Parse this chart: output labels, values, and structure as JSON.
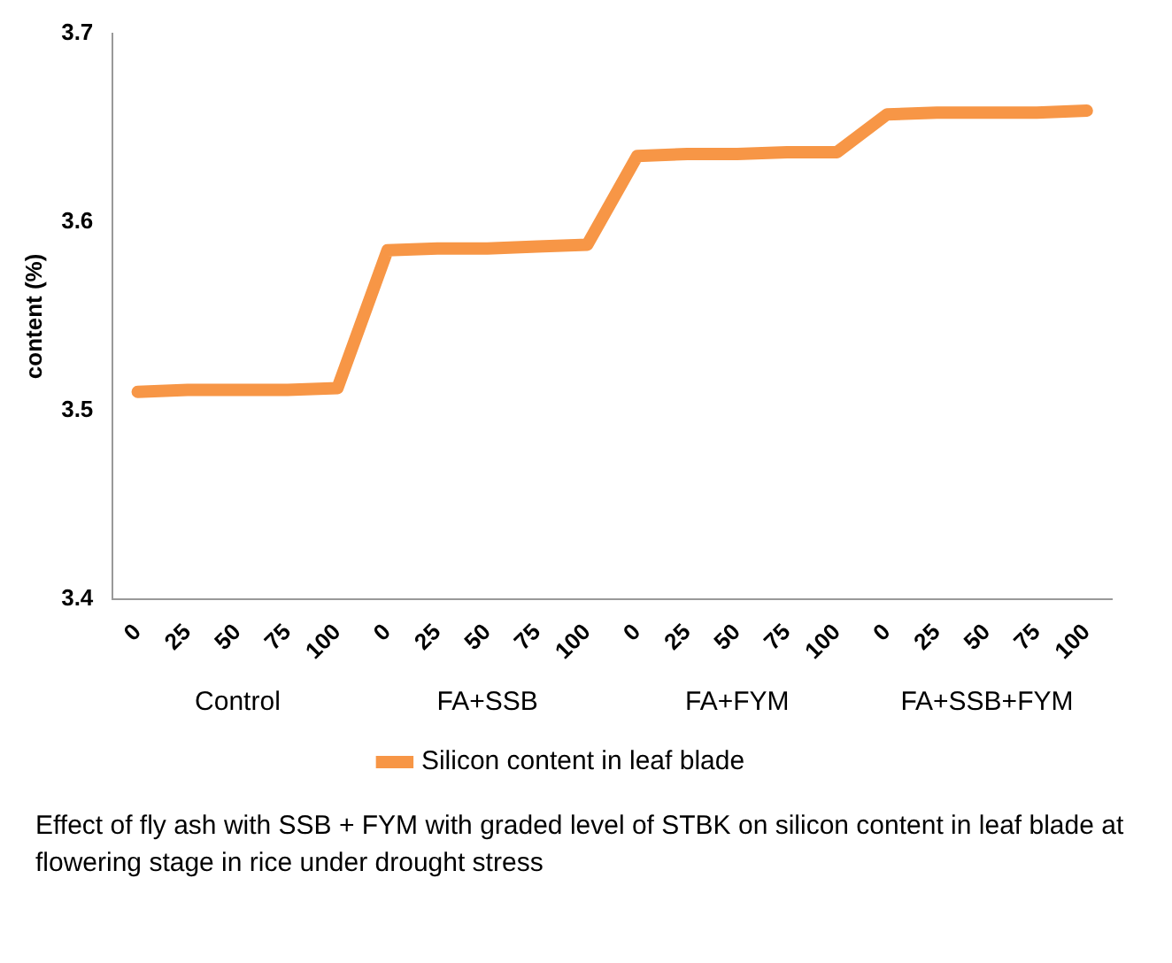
{
  "chart_data": {
    "type": "line",
    "ylabel": "content (%)",
    "categories": [
      "0",
      "25",
      "50",
      "75",
      "100",
      "0",
      "25",
      "50",
      "75",
      "100",
      "0",
      "25",
      "50",
      "75",
      "100",
      "0",
      "25",
      "50",
      "75",
      "100"
    ],
    "series": [
      {
        "name": "Silicon content in leaf blade",
        "color": "#f79646",
        "values": [
          3.51,
          3.511,
          3.511,
          3.511,
          3.512,
          3.585,
          3.586,
          3.586,
          3.587,
          3.588,
          3.635,
          3.636,
          3.636,
          3.637,
          3.637,
          3.657,
          3.658,
          3.658,
          3.658,
          3.659
        ]
      }
    ],
    "ylim": [
      3.4,
      3.7
    ],
    "yticks": [
      3.4,
      3.5,
      3.6,
      3.7
    ],
    "grid": false,
    "legend": "bottom",
    "marker": "none",
    "line_style": "solid",
    "annotations": [
      "Control",
      "FA+SSB",
      "FA+FYM",
      "FA+SSB+FYM",
      "Effect of fly ash with SSB + FYM with graded level of STBK on silicon content in leaf blade at flowering stage in rice under drought stress"
    ]
  }
}
